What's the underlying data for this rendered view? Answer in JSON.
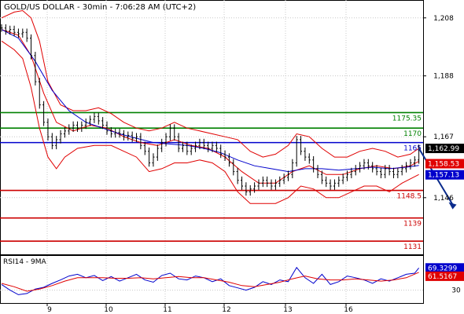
{
  "chart_data": [
    {
      "type": "candlestick",
      "title": "GOLD/US DOLLAR - 30min - 7:06:28 AM (UTC+2)",
      "ylim": [
        1127,
        1212
      ],
      "y_ticks": [
        "1,208",
        "1,188",
        "1,167",
        "1,146"
      ],
      "y_tick_values": [
        1208,
        1188,
        1167,
        1146
      ],
      "x_ticks": [
        "9",
        "10",
        "11",
        "12",
        "13",
        "16"
      ],
      "grid": true,
      "colors": {
        "price": "#000000",
        "bollinger": "#e00000",
        "moving_average": "#0000cc",
        "resistance": "#008000",
        "support": "#cc0000",
        "pivot": "#0000cc",
        "arrow": "#0a2b8c"
      },
      "price_path": [
        [
          0,
          1204.5
        ],
        [
          2,
          1203.5
        ],
        [
          4,
          1204
        ],
        [
          6,
          1203
        ],
        [
          8,
          1202.5
        ],
        [
          10,
          1203
        ],
        [
          12,
          1201
        ],
        [
          14,
          1195
        ],
        [
          16,
          1186
        ],
        [
          18,
          1178
        ],
        [
          20,
          1172
        ],
        [
          22,
          1167
        ],
        [
          24,
          1164
        ],
        [
          26,
          1166
        ],
        [
          28,
          1168
        ],
        [
          30,
          1169
        ],
        [
          32,
          1170
        ],
        [
          34,
          1171
        ],
        [
          36,
          1170
        ],
        [
          38,
          1171
        ],
        [
          40,
          1172
        ],
        [
          42,
          1173
        ],
        [
          44,
          1174
        ],
        [
          46,
          1172.5
        ],
        [
          48,
          1171
        ],
        [
          50,
          1169
        ],
        [
          52,
          1168
        ],
        [
          54,
          1168.5
        ],
        [
          56,
          1168
        ],
        [
          58,
          1167
        ],
        [
          60,
          1167.5
        ],
        [
          62,
          1166.5
        ],
        [
          64,
          1167
        ],
        [
          66,
          1164
        ],
        [
          68,
          1162
        ],
        [
          70,
          1158
        ],
        [
          72,
          1160
        ],
        [
          74,
          1163
        ],
        [
          76,
          1165
        ],
        [
          78,
          1167
        ],
        [
          80,
          1170
        ],
        [
          82,
          1167
        ],
        [
          84,
          1163
        ],
        [
          86,
          1164
        ],
        [
          88,
          1162
        ],
        [
          90,
          1163
        ],
        [
          92,
          1164
        ],
        [
          94,
          1165
        ],
        [
          96,
          1164
        ],
        [
          98,
          1163
        ],
        [
          100,
          1164
        ],
        [
          102,
          1163
        ],
        [
          104,
          1161
        ],
        [
          106,
          1160
        ],
        [
          108,
          1158
        ],
        [
          110,
          1155
        ],
        [
          112,
          1152
        ],
        [
          114,
          1150
        ],
        [
          116,
          1148
        ],
        [
          118,
          1149
        ],
        [
          120,
          1150
        ],
        [
          122,
          1151
        ],
        [
          124,
          1152
        ],
        [
          126,
          1151
        ],
        [
          128,
          1150
        ],
        [
          130,
          1151
        ],
        [
          132,
          1152
        ],
        [
          134,
          1153
        ],
        [
          136,
          1154
        ],
        [
          138,
          1158
        ],
        [
          140,
          1166
        ],
        [
          142,
          1162
        ],
        [
          144,
          1160
        ],
        [
          146,
          1159
        ],
        [
          148,
          1156
        ],
        [
          150,
          1154
        ],
        [
          152,
          1152
        ],
        [
          154,
          1151
        ],
        [
          156,
          1150
        ],
        [
          158,
          1151
        ],
        [
          160,
          1152
        ],
        [
          162,
          1153
        ],
        [
          164,
          1154
        ],
        [
          166,
          1155
        ],
        [
          168,
          1156
        ],
        [
          170,
          1157
        ],
        [
          172,
          1158
        ],
        [
          174,
          1157
        ],
        [
          176,
          1156
        ],
        [
          178,
          1155
        ],
        [
          180,
          1154
        ],
        [
          182,
          1156
        ],
        [
          184,
          1155
        ],
        [
          186,
          1154
        ],
        [
          188,
          1155
        ],
        [
          190,
          1156
        ],
        [
          192,
          1157
        ],
        [
          194,
          1158
        ],
        [
          196,
          1159
        ],
        [
          198,
          1162.99
        ]
      ],
      "moving_average": [
        [
          0,
          1204
        ],
        [
          8,
          1201
        ],
        [
          16,
          1193
        ],
        [
          24,
          1183
        ],
        [
          32,
          1176
        ],
        [
          40,
          1172
        ],
        [
          48,
          1170
        ],
        [
          56,
          1168
        ],
        [
          64,
          1166.5
        ],
        [
          72,
          1165
        ],
        [
          80,
          1164.5
        ],
        [
          88,
          1164
        ],
        [
          96,
          1163
        ],
        [
          104,
          1161.5
        ],
        [
          112,
          1159
        ],
        [
          120,
          1157
        ],
        [
          128,
          1156
        ],
        [
          136,
          1155
        ],
        [
          144,
          1156
        ],
        [
          152,
          1156
        ],
        [
          160,
          1155.5
        ],
        [
          168,
          1156
        ],
        [
          176,
          1156.5
        ],
        [
          184,
          1156
        ],
        [
          192,
          1156.5
        ],
        [
          198,
          1157.13
        ]
      ],
      "bollinger_upper": [
        [
          0,
          1208
        ],
        [
          6,
          1210
        ],
        [
          10,
          1210.5
        ],
        [
          14,
          1208
        ],
        [
          18,
          1200
        ],
        [
          22,
          1186
        ],
        [
          28,
          1178
        ],
        [
          34,
          1176
        ],
        [
          40,
          1176
        ],
        [
          46,
          1177
        ],
        [
          52,
          1175
        ],
        [
          58,
          1172
        ],
        [
          64,
          1170
        ],
        [
          70,
          1169
        ],
        [
          76,
          1170
        ],
        [
          82,
          1172
        ],
        [
          88,
          1170
        ],
        [
          94,
          1169
        ],
        [
          100,
          1168
        ],
        [
          106,
          1167
        ],
        [
          112,
          1166
        ],
        [
          118,
          1162
        ],
        [
          124,
          1160
        ],
        [
          130,
          1161
        ],
        [
          136,
          1164
        ],
        [
          140,
          1168
        ],
        [
          146,
          1167
        ],
        [
          152,
          1163
        ],
        [
          158,
          1160
        ],
        [
          164,
          1160
        ],
        [
          170,
          1162
        ],
        [
          176,
          1163
        ],
        [
          182,
          1162
        ],
        [
          188,
          1160
        ],
        [
          194,
          1161
        ],
        [
          198,
          1163
        ]
      ],
      "bollinger_middle": [
        [
          0,
          1204
        ],
        [
          8,
          1202
        ],
        [
          14,
          1195
        ],
        [
          20,
          1182
        ],
        [
          26,
          1172
        ],
        [
          34,
          1169
        ],
        [
          42,
          1171
        ],
        [
          50,
          1170
        ],
        [
          58,
          1167
        ],
        [
          66,
          1165
        ],
        [
          74,
          1164
        ],
        [
          82,
          1166
        ],
        [
          90,
          1164
        ],
        [
          98,
          1163
        ],
        [
          106,
          1160
        ],
        [
          114,
          1155
        ],
        [
          122,
          1151
        ],
        [
          130,
          1151
        ],
        [
          138,
          1155
        ],
        [
          146,
          1157
        ],
        [
          154,
          1154
        ],
        [
          162,
          1154
        ],
        [
          170,
          1156
        ],
        [
          178,
          1157
        ],
        [
          186,
          1156
        ],
        [
          194,
          1157
        ],
        [
          198,
          1158.5
        ]
      ],
      "bollinger_lower": [
        [
          0,
          1200
        ],
        [
          6,
          1197
        ],
        [
          10,
          1194
        ],
        [
          14,
          1184
        ],
        [
          18,
          1170
        ],
        [
          22,
          1160
        ],
        [
          26,
          1156
        ],
        [
          30,
          1160
        ],
        [
          36,
          1163
        ],
        [
          44,
          1164
        ],
        [
          52,
          1164
        ],
        [
          58,
          1162
        ],
        [
          64,
          1160
        ],
        [
          70,
          1155
        ],
        [
          76,
          1156
        ],
        [
          82,
          1158
        ],
        [
          88,
          1158
        ],
        [
          94,
          1159
        ],
        [
          100,
          1158
        ],
        [
          106,
          1155
        ],
        [
          112,
          1148
        ],
        [
          118,
          1144
        ],
        [
          124,
          1144
        ],
        [
          130,
          1144
        ],
        [
          136,
          1146
        ],
        [
          142,
          1150
        ],
        [
          148,
          1149
        ],
        [
          154,
          1146
        ],
        [
          160,
          1146
        ],
        [
          166,
          1148
        ],
        [
          172,
          1150
        ],
        [
          178,
          1150
        ],
        [
          184,
          1148
        ],
        [
          190,
          1151
        ],
        [
          198,
          1154
        ]
      ],
      "levels": [
        {
          "label": "1175.35",
          "value": 1175.35,
          "kind": "resistance"
        },
        {
          "label": "1170",
          "value": 1170,
          "kind": "resistance"
        },
        {
          "label": "1165",
          "value": 1165,
          "kind": "pivot"
        },
        {
          "label": "1148.5",
          "value": 1148.5,
          "kind": "support"
        },
        {
          "label": "1139",
          "value": 1139,
          "kind": "support"
        },
        {
          "label": "1131",
          "value": 1131,
          "kind": "support"
        }
      ],
      "current_price": "1,162.99",
      "bollinger_middle_last": "1,158.53",
      "moving_average_last": "1,157.13",
      "arrow": {
        "from": [
          198,
          1163
        ],
        "to": [
          214,
          1142
        ]
      }
    },
    {
      "type": "line",
      "title": "RSI14 - 9MA",
      "ylim": [
        10,
        85
      ],
      "y_ticks": [
        "30"
      ],
      "y_tick_values": [
        30
      ],
      "series": [
        {
          "name": "RSI14",
          "color": "#0000cc",
          "values": [
            [
              0,
              40
            ],
            [
              4,
              30
            ],
            [
              8,
              22
            ],
            [
              12,
              24
            ],
            [
              16,
              32
            ],
            [
              20,
              35
            ],
            [
              24,
              42
            ],
            [
              28,
              48
            ],
            [
              32,
              55
            ],
            [
              36,
              58
            ],
            [
              40,
              52
            ],
            [
              44,
              56
            ],
            [
              48,
              47
            ],
            [
              52,
              54
            ],
            [
              56,
              46
            ],
            [
              60,
              52
            ],
            [
              64,
              58
            ],
            [
              68,
              48
            ],
            [
              72,
              44
            ],
            [
              76,
              56
            ],
            [
              80,
              60
            ],
            [
              84,
              50
            ],
            [
              88,
              48
            ],
            [
              92,
              55
            ],
            [
              96,
              52
            ],
            [
              100,
              45
            ],
            [
              104,
              50
            ],
            [
              108,
              38
            ],
            [
              112,
              34
            ],
            [
              116,
              30
            ],
            [
              120,
              35
            ],
            [
              124,
              45
            ],
            [
              128,
              40
            ],
            [
              132,
              48
            ],
            [
              136,
              45
            ],
            [
              140,
              70
            ],
            [
              144,
              52
            ],
            [
              148,
              42
            ],
            [
              152,
              58
            ],
            [
              156,
              40
            ],
            [
              160,
              45
            ],
            [
              164,
              55
            ],
            [
              168,
              52
            ],
            [
              172,
              48
            ],
            [
              176,
              42
            ],
            [
              180,
              50
            ],
            [
              184,
              46
            ],
            [
              188,
              52
            ],
            [
              192,
              58
            ],
            [
              196,
              60
            ],
            [
              198,
              69.33
            ]
          ]
        },
        {
          "name": "9MA",
          "color": "#e00000",
          "values": [
            [
              0,
              42
            ],
            [
              6,
              36
            ],
            [
              12,
              28
            ],
            [
              18,
              32
            ],
            [
              24,
              38
            ],
            [
              30,
              46
            ],
            [
              36,
              52
            ],
            [
              42,
              52
            ],
            [
              48,
              52
            ],
            [
              54,
              51
            ],
            [
              60,
              51
            ],
            [
              66,
              52
            ],
            [
              72,
              50
            ],
            [
              78,
              52
            ],
            [
              84,
              54
            ],
            [
              90,
              52
            ],
            [
              96,
              52
            ],
            [
              102,
              48
            ],
            [
              108,
              44
            ],
            [
              114,
              38
            ],
            [
              120,
              36
            ],
            [
              126,
              40
            ],
            [
              132,
              44
            ],
            [
              138,
              50
            ],
            [
              144,
              55
            ],
            [
              150,
              50
            ],
            [
              156,
              48
            ],
            [
              162,
              48
            ],
            [
              168,
              50
            ],
            [
              174,
              48
            ],
            [
              180,
              46
            ],
            [
              186,
              48
            ],
            [
              192,
              52
            ],
            [
              198,
              61.52
            ]
          ]
        }
      ],
      "current_value": "69.3299",
      "ma_last": "61.5167"
    }
  ]
}
